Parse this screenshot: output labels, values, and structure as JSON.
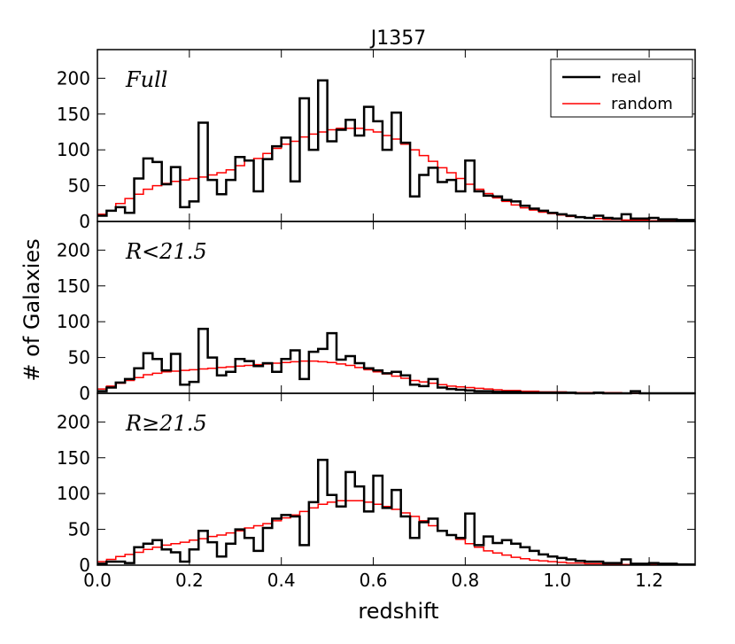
{
  "chart_data": {
    "type": "histogram",
    "title": "J1357",
    "xlabel": "redshift",
    "ylabel": "# of Galaxies",
    "xlim": [
      0.0,
      1.3
    ],
    "ylim": [
      0,
      240
    ],
    "bin_width": 0.02,
    "x_ticks": [
      "0.0",
      "0.2",
      "0.4",
      "0.6",
      "0.8",
      "1.0",
      "1.2"
    ],
    "x_tick_values": [
      0.0,
      0.2,
      0.4,
      0.6,
      0.8,
      1.0,
      1.2
    ],
    "y_ticks": [
      "0",
      "50",
      "100",
      "150",
      "200"
    ],
    "y_tick_values": [
      0,
      50,
      100,
      150,
      200
    ],
    "legend": {
      "location": "top-right",
      "entries": [
        {
          "label": "real",
          "color": "#000000"
        },
        {
          "label": "random",
          "color": "#ff0000"
        }
      ]
    },
    "panels": [
      {
        "label_text": "Full",
        "real": [
          8,
          15,
          20,
          12,
          60,
          88,
          83,
          52,
          76,
          20,
          28,
          138,
          58,
          38,
          58,
          90,
          85,
          42,
          87,
          105,
          117,
          56,
          172,
          100,
          197,
          112,
          128,
          142,
          120,
          160,
          140,
          100,
          152,
          110,
          35,
          65,
          75,
          55,
          58,
          42,
          85,
          42,
          36,
          35,
          30,
          28,
          22,
          18,
          15,
          12,
          10,
          8,
          6,
          5,
          8,
          5,
          4,
          10,
          4,
          4,
          5,
          3,
          3,
          2,
          2
        ],
        "random": [
          10,
          15,
          25,
          32,
          38,
          45,
          50,
          53,
          56,
          58,
          60,
          62,
          65,
          68,
          72,
          78,
          85,
          88,
          95,
          102,
          108,
          112,
          118,
          122,
          125,
          128,
          130,
          130,
          130,
          128,
          125,
          120,
          115,
          108,
          100,
          92,
          84,
          75,
          68,
          60,
          52,
          45,
          39,
          33,
          28,
          23,
          19,
          16,
          13,
          11,
          9,
          7,
          6,
          5,
          4,
          3,
          3,
          2,
          2,
          2,
          1,
          1,
          1,
          1,
          1
        ]
      },
      {
        "label_text": "R<21.5",
        "real": [
          3,
          8,
          15,
          20,
          35,
          56,
          48,
          32,
          55,
          12,
          16,
          90,
          50,
          25,
          30,
          48,
          45,
          38,
          42,
          30,
          48,
          60,
          20,
          58,
          62,
          84,
          47,
          52,
          42,
          35,
          32,
          28,
          30,
          25,
          12,
          10,
          20,
          8,
          6,
          5,
          4,
          3,
          3,
          2,
          2,
          2,
          1,
          1,
          1,
          1,
          1,
          1,
          0,
          0,
          1,
          0,
          0,
          0,
          3,
          0,
          0,
          0,
          0,
          0,
          0
        ],
        "random": [
          6,
          10,
          14,
          18,
          22,
          26,
          28,
          30,
          31,
          32,
          33,
          34,
          35,
          36,
          37,
          38,
          39,
          40,
          41,
          42,
          43,
          44,
          45,
          45,
          44,
          43,
          41,
          39,
          36,
          33,
          30,
          27,
          24,
          21,
          18,
          16,
          14,
          12,
          10,
          9,
          8,
          7,
          6,
          5,
          4,
          4,
          3,
          3,
          2,
          2,
          2,
          1,
          1,
          1,
          1,
          1,
          1,
          0,
          0,
          0,
          0,
          0,
          0,
          0,
          0
        ]
      },
      {
        "label_text": "R≥21.5",
        "real": [
          2,
          5,
          5,
          3,
          25,
          30,
          35,
          22,
          18,
          5,
          22,
          48,
          32,
          12,
          30,
          50,
          38,
          20,
          52,
          65,
          70,
          68,
          28,
          88,
          147,
          98,
          82,
          130,
          110,
          75,
          125,
          80,
          105,
          68,
          38,
          60,
          65,
          48,
          42,
          38,
          72,
          28,
          40,
          31,
          35,
          30,
          25,
          20,
          15,
          12,
          10,
          8,
          6,
          5,
          5,
          3,
          3,
          8,
          2,
          2,
          3,
          2,
          2,
          1,
          1
        ],
        "random": [
          5,
          8,
          12,
          15,
          18,
          22,
          25,
          28,
          30,
          32,
          35,
          37,
          40,
          42,
          45,
          48,
          52,
          55,
          58,
          62,
          66,
          70,
          75,
          80,
          85,
          88,
          90,
          90,
          90,
          88,
          85,
          82,
          78,
          73,
          68,
          62,
          55,
          48,
          42,
          36,
          30,
          25,
          20,
          17,
          14,
          11,
          9,
          7,
          6,
          5,
          4,
          3,
          3,
          2,
          2,
          1,
          1,
          1,
          1,
          1,
          1,
          1,
          1,
          1,
          1
        ]
      }
    ]
  }
}
